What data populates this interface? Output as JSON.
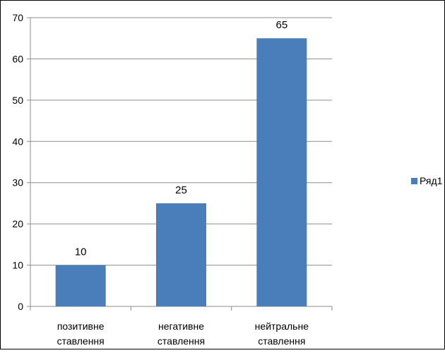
{
  "chart_data": {
    "type": "bar",
    "categories": [
      [
        "позитивне",
        "ставлення"
      ],
      [
        "негативне",
        "ставлення"
      ],
      [
        "нейтральне",
        "ставлення"
      ]
    ],
    "series": [
      {
        "name": "Ряд1",
        "values": [
          10,
          25,
          65
        ],
        "color": "#4a7ebb"
      }
    ],
    "data_labels": [
      "10",
      "25",
      "65"
    ],
    "ylim": [
      0,
      70
    ],
    "yticks": [
      0,
      10,
      20,
      30,
      40,
      50,
      60,
      70
    ],
    "grid": true,
    "legend": {
      "position": "right",
      "labels": [
        "Ряд1"
      ]
    },
    "colors": {
      "bar": "#4a7ebb",
      "grid": "#8c8c8c",
      "axis": "#8c8c8c",
      "border": "#000000",
      "text": "#000000"
    }
  }
}
